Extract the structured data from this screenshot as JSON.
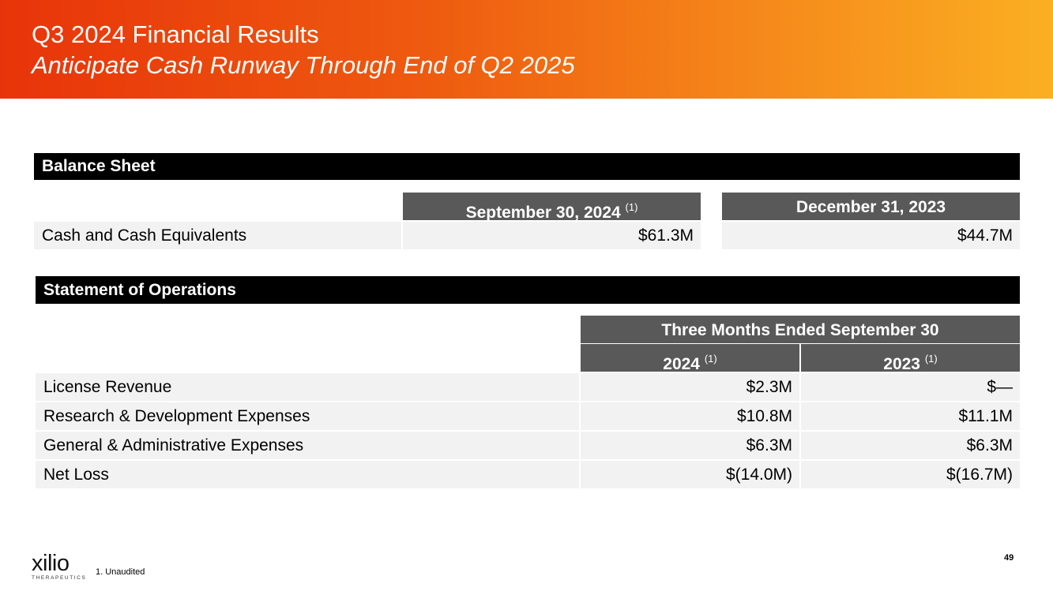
{
  "header": {
    "title": "Q3 2024 Financial Results",
    "subtitle": "Anticipate Cash Runway Through End of Q2 2025"
  },
  "balance_sheet": {
    "section_title": "Balance Sheet",
    "columns": [
      {
        "label": "September 30, 2024",
        "note": "(1)"
      },
      {
        "label": "December 31, 2023",
        "note": ""
      }
    ],
    "rows": [
      {
        "label": "Cash and Cash Equivalents",
        "values": [
          "$61.3M",
          "$44.7M"
        ]
      }
    ]
  },
  "operations": {
    "section_title": "Statement of Operations",
    "group_header": "Three Months Ended September 30",
    "columns": [
      {
        "label": "2024",
        "note": "(1)"
      },
      {
        "label": "2023",
        "note": "(1)"
      }
    ],
    "rows": [
      {
        "label": "License Revenue",
        "values": [
          "$2.3M",
          "$—"
        ]
      },
      {
        "label": "Research & Development Expenses",
        "values": [
          "$10.8M",
          "$11.1M"
        ]
      },
      {
        "label": "General & Administrative Expenses",
        "values": [
          "$6.3M",
          "$6.3M"
        ]
      },
      {
        "label": "Net Loss",
        "values": [
          "$(14.0M)",
          "$(16.7M)"
        ]
      }
    ]
  },
  "footer": {
    "logo_text": "xilio",
    "logo_tagline": "THERAPEUTICS",
    "footnote": "1. Unaudited",
    "page_number": "49"
  }
}
